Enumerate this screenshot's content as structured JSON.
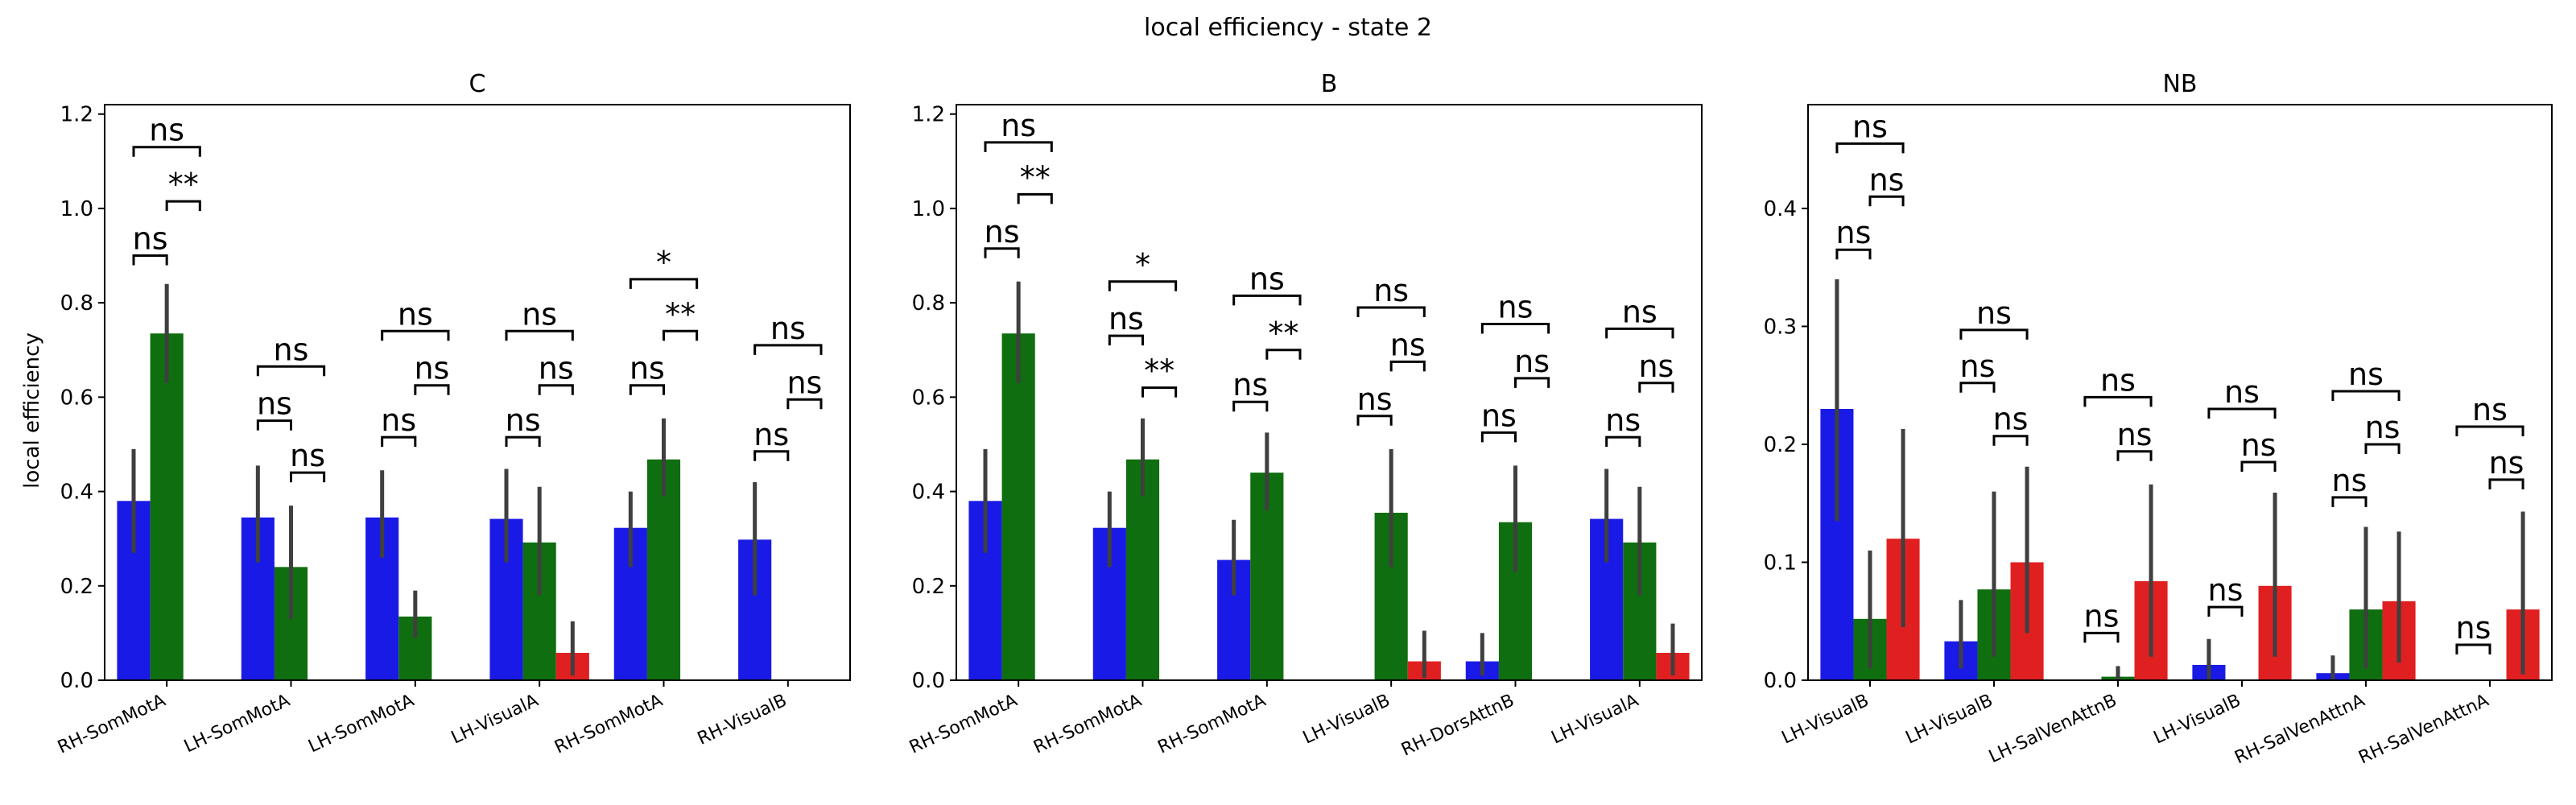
{
  "suptitle": "local efficiency - state 2",
  "ylabel": "local efficiency",
  "colors": [
    "#1a1ae6",
    "#0f6e0f",
    "#e02020"
  ],
  "chart_data": [
    {
      "type": "bar",
      "title": "C",
      "ylabel": "local efficiency",
      "ylim": [
        0,
        1.22
      ],
      "yticks": [
        "0.0",
        "0.2",
        "0.4",
        "0.6",
        "0.8",
        "1.0",
        "1.2"
      ],
      "categories": [
        "RH-SomMotA",
        "LH-SomMotA",
        "LH-SomMotA",
        "LH-VisualA",
        "RH-SomMotA",
        "RH-VisualB"
      ],
      "series": [
        {
          "values": [
            0.38,
            0.345,
            0.345,
            0.342,
            0.323,
            0.298
          ],
          "ci_low": [
            0.27,
            0.25,
            0.26,
            0.25,
            0.24,
            0.18
          ],
          "ci_high": [
            0.49,
            0.455,
            0.445,
            0.448,
            0.4,
            0.42
          ]
        },
        {
          "values": [
            0.735,
            0.24,
            0.135,
            0.292,
            0.468,
            null
          ],
          "ci_low": [
            0.63,
            0.13,
            0.09,
            0.18,
            0.39,
            null
          ],
          "ci_high": [
            0.84,
            0.37,
            0.19,
            0.41,
            0.555,
            null
          ]
        },
        {
          "values": [
            null,
            null,
            null,
            0.058,
            null,
            null
          ],
          "ci_low": [
            null,
            null,
            null,
            0.01,
            null,
            null
          ],
          "ci_high": [
            null,
            null,
            null,
            0.125,
            null,
            null
          ]
        }
      ],
      "annotations": [
        {
          "cat": 0,
          "a": 0,
          "b": 1,
          "y": 0.9,
          "label": "ns"
        },
        {
          "cat": 0,
          "a": 1,
          "b": 2,
          "y": 1.015,
          "label": "**"
        },
        {
          "cat": 0,
          "a": 0,
          "b": 2,
          "y": 1.13,
          "label": "ns"
        },
        {
          "cat": 1,
          "a": 0,
          "b": 1,
          "y": 0.55,
          "label": "ns"
        },
        {
          "cat": 1,
          "a": 1,
          "b": 2,
          "y": 0.44,
          "label": "ns"
        },
        {
          "cat": 1,
          "a": 0,
          "b": 2,
          "y": 0.665,
          "label": "ns"
        },
        {
          "cat": 2,
          "a": 0,
          "b": 1,
          "y": 0.515,
          "label": "ns"
        },
        {
          "cat": 2,
          "a": 1,
          "b": 2,
          "y": 0.625,
          "label": "ns"
        },
        {
          "cat": 2,
          "a": 0,
          "b": 2,
          "y": 0.74,
          "label": "ns"
        },
        {
          "cat": 3,
          "a": 0,
          "b": 1,
          "y": 0.515,
          "label": "ns"
        },
        {
          "cat": 3,
          "a": 1,
          "b": 2,
          "y": 0.625,
          "label": "ns"
        },
        {
          "cat": 3,
          "a": 0,
          "b": 2,
          "y": 0.74,
          "label": "ns"
        },
        {
          "cat": 4,
          "a": 0,
          "b": 1,
          "y": 0.625,
          "label": "ns"
        },
        {
          "cat": 4,
          "a": 1,
          "b": 2,
          "y": 0.74,
          "label": "**"
        },
        {
          "cat": 4,
          "a": 0,
          "b": 2,
          "y": 0.85,
          "label": "*"
        },
        {
          "cat": 5,
          "a": 0,
          "b": 1,
          "y": 0.485,
          "label": "ns"
        },
        {
          "cat": 5,
          "a": 1,
          "b": 2,
          "y": 0.595,
          "label": "ns"
        },
        {
          "cat": 5,
          "a": 0,
          "b": 2,
          "y": 0.71,
          "label": "ns"
        }
      ]
    },
    {
      "type": "bar",
      "title": "B",
      "ylim": [
        0,
        1.22
      ],
      "yticks": [
        "0.0",
        "0.2",
        "0.4",
        "0.6",
        "0.8",
        "1.0",
        "1.2"
      ],
      "categories": [
        "RH-SomMotA",
        "RH-SomMotA",
        "RH-SomMotA",
        "LH-VisualB",
        "RH-DorsAttnB",
        "LH-VisualA"
      ],
      "series": [
        {
          "values": [
            0.38,
            0.323,
            0.255,
            null,
            0.04,
            0.342
          ],
          "ci_low": [
            0.27,
            0.24,
            0.18,
            null,
            0.01,
            0.25
          ],
          "ci_high": [
            0.49,
            0.4,
            0.34,
            null,
            0.1,
            0.448
          ]
        },
        {
          "values": [
            0.735,
            0.468,
            0.44,
            0.355,
            0.335,
            0.292
          ],
          "ci_low": [
            0.63,
            0.39,
            0.36,
            0.24,
            0.23,
            0.18
          ],
          "ci_high": [
            0.845,
            0.555,
            0.525,
            0.49,
            0.455,
            0.41
          ]
        },
        {
          "values": [
            null,
            null,
            null,
            0.04,
            null,
            0.058
          ],
          "ci_low": [
            null,
            null,
            null,
            0.005,
            null,
            0.01
          ],
          "ci_high": [
            null,
            null,
            null,
            0.105,
            null,
            0.12
          ]
        }
      ],
      "annotations": [
        {
          "cat": 0,
          "a": 0,
          "b": 1,
          "y": 0.915,
          "label": "ns"
        },
        {
          "cat": 0,
          "a": 1,
          "b": 2,
          "y": 1.03,
          "label": "**"
        },
        {
          "cat": 0,
          "a": 0,
          "b": 2,
          "y": 1.14,
          "label": "ns"
        },
        {
          "cat": 1,
          "a": 0,
          "b": 1,
          "y": 0.73,
          "label": "ns"
        },
        {
          "cat": 1,
          "a": 1,
          "b": 2,
          "y": 0.62,
          "label": "**"
        },
        {
          "cat": 1,
          "a": 0,
          "b": 2,
          "y": 0.845,
          "label": "*"
        },
        {
          "cat": 2,
          "a": 0,
          "b": 1,
          "y": 0.59,
          "label": "ns"
        },
        {
          "cat": 2,
          "a": 1,
          "b": 2,
          "y": 0.7,
          "label": "**"
        },
        {
          "cat": 2,
          "a": 0,
          "b": 2,
          "y": 0.815,
          "label": "ns"
        },
        {
          "cat": 3,
          "a": 0,
          "b": 1,
          "y": 0.56,
          "label": "ns"
        },
        {
          "cat": 3,
          "a": 1,
          "b": 2,
          "y": 0.675,
          "label": "ns"
        },
        {
          "cat": 3,
          "a": 0,
          "b": 2,
          "y": 0.79,
          "label": "ns"
        },
        {
          "cat": 4,
          "a": 0,
          "b": 1,
          "y": 0.525,
          "label": "ns"
        },
        {
          "cat": 4,
          "a": 1,
          "b": 2,
          "y": 0.64,
          "label": "ns"
        },
        {
          "cat": 4,
          "a": 0,
          "b": 2,
          "y": 0.755,
          "label": "ns"
        },
        {
          "cat": 5,
          "a": 0,
          "b": 1,
          "y": 0.515,
          "label": "ns"
        },
        {
          "cat": 5,
          "a": 1,
          "b": 2,
          "y": 0.63,
          "label": "ns"
        },
        {
          "cat": 5,
          "a": 0,
          "b": 2,
          "y": 0.745,
          "label": "ns"
        }
      ]
    },
    {
      "type": "bar",
      "title": "NB",
      "ylim": [
        0,
        0.488
      ],
      "yticks": [
        "0.0",
        "0.1",
        "0.2",
        "0.3",
        "0.4"
      ],
      "categories": [
        "LH-VisualB",
        "LH-VisualB",
        "LH-SalVenAttnB",
        "LH-VisualB",
        "RH-SalVenAttnA",
        "RH-SalVenAttnA"
      ],
      "series": [
        {
          "values": [
            0.23,
            0.033,
            null,
            0.013,
            0.006,
            null
          ],
          "ci_low": [
            0.135,
            0.01,
            null,
            0.0,
            0.0,
            null
          ],
          "ci_high": [
            0.34,
            0.068,
            null,
            0.035,
            0.021,
            null
          ]
        },
        {
          "values": [
            0.052,
            0.077,
            0.003,
            null,
            0.06,
            null
          ],
          "ci_low": [
            0.01,
            0.02,
            0.0,
            null,
            0.01,
            null
          ],
          "ci_high": [
            0.11,
            0.16,
            0.012,
            null,
            0.13,
            null
          ]
        },
        {
          "values": [
            0.12,
            0.1,
            0.084,
            0.08,
            0.067,
            0.06
          ],
          "ci_low": [
            0.045,
            0.04,
            0.02,
            0.02,
            0.015,
            0.005
          ],
          "ci_high": [
            0.213,
            0.181,
            0.166,
            0.159,
            0.126,
            0.143
          ]
        }
      ],
      "annotations": [
        {
          "cat": 0,
          "a": 0,
          "b": 1,
          "y": 0.365,
          "label": "ns"
        },
        {
          "cat": 0,
          "a": 1,
          "b": 2,
          "y": 0.41,
          "label": "ns"
        },
        {
          "cat": 0,
          "a": 0,
          "b": 2,
          "y": 0.455,
          "label": "ns"
        },
        {
          "cat": 1,
          "a": 0,
          "b": 1,
          "y": 0.252,
          "label": "ns"
        },
        {
          "cat": 1,
          "a": 1,
          "b": 2,
          "y": 0.207,
          "label": "ns"
        },
        {
          "cat": 1,
          "a": 0,
          "b": 2,
          "y": 0.297,
          "label": "ns"
        },
        {
          "cat": 2,
          "a": 0,
          "b": 1,
          "y": 0.04,
          "label": "ns"
        },
        {
          "cat": 2,
          "a": 1,
          "b": 2,
          "y": 0.194,
          "label": "ns"
        },
        {
          "cat": 2,
          "a": 0,
          "b": 2,
          "y": 0.24,
          "label": "ns"
        },
        {
          "cat": 3,
          "a": 0,
          "b": 1,
          "y": 0.062,
          "label": "ns"
        },
        {
          "cat": 3,
          "a": 1,
          "b": 2,
          "y": 0.185,
          "label": "ns"
        },
        {
          "cat": 3,
          "a": 0,
          "b": 2,
          "y": 0.23,
          "label": "ns"
        },
        {
          "cat": 4,
          "a": 0,
          "b": 1,
          "y": 0.155,
          "label": "ns"
        },
        {
          "cat": 4,
          "a": 1,
          "b": 2,
          "y": 0.2,
          "label": "ns"
        },
        {
          "cat": 4,
          "a": 0,
          "b": 2,
          "y": 0.245,
          "label": "ns"
        },
        {
          "cat": 5,
          "a": 0,
          "b": 1,
          "y": 0.03,
          "label": "ns"
        },
        {
          "cat": 5,
          "a": 1,
          "b": 2,
          "y": 0.17,
          "label": "ns"
        },
        {
          "cat": 5,
          "a": 0,
          "b": 2,
          "y": 0.215,
          "label": "ns"
        }
      ]
    }
  ]
}
